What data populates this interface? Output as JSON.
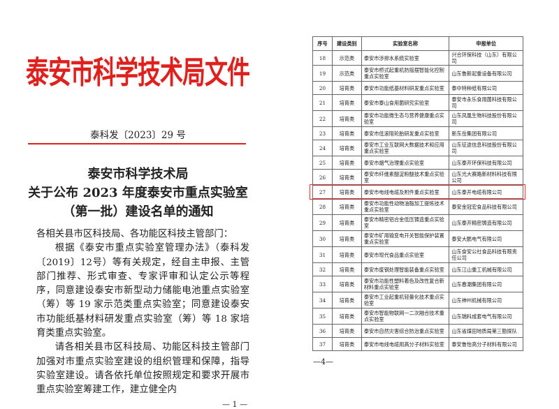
{
  "left_page": {
    "header_title": "泰安市科学技术局文件",
    "doc_number": "泰科发〔2023〕29 号",
    "notice_title": [
      "泰安市科学技术局",
      "关于公布 2023 年度泰安市重点实验室",
      "（第一批）建设名单的通知"
    ],
    "salutation": "各相关县市区科技局、各功能区科技主管部门：",
    "paragraphs": [
      "根据《泰安市重点实验室管理办法》（泰科发〔2019〕12号）等有关规定，经自主申报、主管部门推荐、形式审查、专家评审和认定公示等程序，同意建设泰安市新型动力储能电池重点实验室（筹）等 19 家示范类重点实验室；同意建设泰安市功能纸基材料研发重点实验室（筹）等 18 家培育类重点实验室。",
      "请各相关县市区科技局、功能区科技主管部门加强对市重点实验室建设的组织管理和保障，指导实验室建设。请各依托单位按照规定和要求开展市重点实验室筹建工作，建立健全内"
    ],
    "page_number": "— 1 —"
  },
  "right_page": {
    "table": {
      "headers": [
        "序号",
        "建设类别",
        "实验室名称",
        "申报单位"
      ],
      "rows": [
        [
          "18",
          "示范类",
          "泰安市涉排水系统实验室",
          "兴合环保科技（山东）有限公司"
        ],
        [
          "19",
          "示范类",
          "泰安市桥式起重机防摇摆智能化控制重点实验室",
          "山东鲁新起重设备有限公司"
        ],
        [
          "20",
          "培育类",
          "泰安市功能纸基材料研发重点实验室",
          "泰中特种纸有限公司"
        ],
        [
          "21",
          "培育类",
          "泰安市泰山食用菌研究实验室",
          "泰安市永乐食用菌科技有限公司"
        ],
        [
          "22",
          "培育类",
          "泰安市功能微生态与营养健康重点实验室",
          "山东凤凰生物科技股份有限公司"
        ],
        [
          "23",
          "培育类",
          "泰安市低滚阻轮胎研发重点实验室",
          "新东岳集团有限公司"
        ],
        [
          "24",
          "培育类",
          "泰安市工业互联网大数据技术和应用重点实验室",
          "山东征途信息科技股份有限公司"
        ],
        [
          "25",
          "培育类",
          "泰安市烟气治理重点实验室",
          "山东泰开环保科技有限公司"
        ],
        [
          "26",
          "培育类",
          "泰安市纤维素醚淀粉醚技术重点实验室",
          "山东光大赛路新材料科技有限公司"
        ],
        [
          "27",
          "培育类",
          "泰安市电线电缆及附件重点实验室",
          "山东泰开电缆有限公司"
        ],
        [
          "28",
          "培育类",
          "泰安市功能性动物油脂加工提炼技术重点实验室",
          "泰安金冠宏食品科技有限公司"
        ],
        [
          "29",
          "培育类",
          "泰安市精密铝合金低压铸造重点实验室",
          "山东泰开精密铸造有限公司"
        ],
        [
          "30",
          "培育类",
          "泰安市矿用输变电开关智能保护装置重点实验室",
          "泰安大鹏电气有限公司"
        ],
        [
          "31",
          "培育类",
          "泰安市现代食品重点实验室",
          "山东食安公社食品科技有限责任公司"
        ],
        [
          "32",
          "培育类",
          "泰安市废钢处理智能装备重点实验室",
          "山东江山重工机械有限公司"
        ],
        [
          "33",
          "培育类",
          "泰安市功能性塑料着色及改性复合新材料重点实验室",
          "山东春潮集团有限公司"
        ],
        [
          "34",
          "培育类",
          "泰安市工业起重机轻量化技术重点实验室",
          "山东神州机械有限公司"
        ],
        [
          "35",
          "培育类",
          "泰安市智能物联网一二次融合技术重点实验室",
          "山东瑞科成套电气有限公司"
        ],
        [
          "36",
          "培育类",
          "泰安市自然灾害综合防治重点实验室",
          "山东省煤田地质局第三勘探队"
        ],
        [
          "37",
          "培育类",
          "泰安市电线电缆用高分子材料实验室",
          "泰安鲁怡高分子材料有限公司"
        ]
      ],
      "highlighted_row": "27",
      "highlight_color": "#e82a2a"
    },
    "page_number": "—4—"
  },
  "colors": {
    "red_header": "#e0201c"
  }
}
